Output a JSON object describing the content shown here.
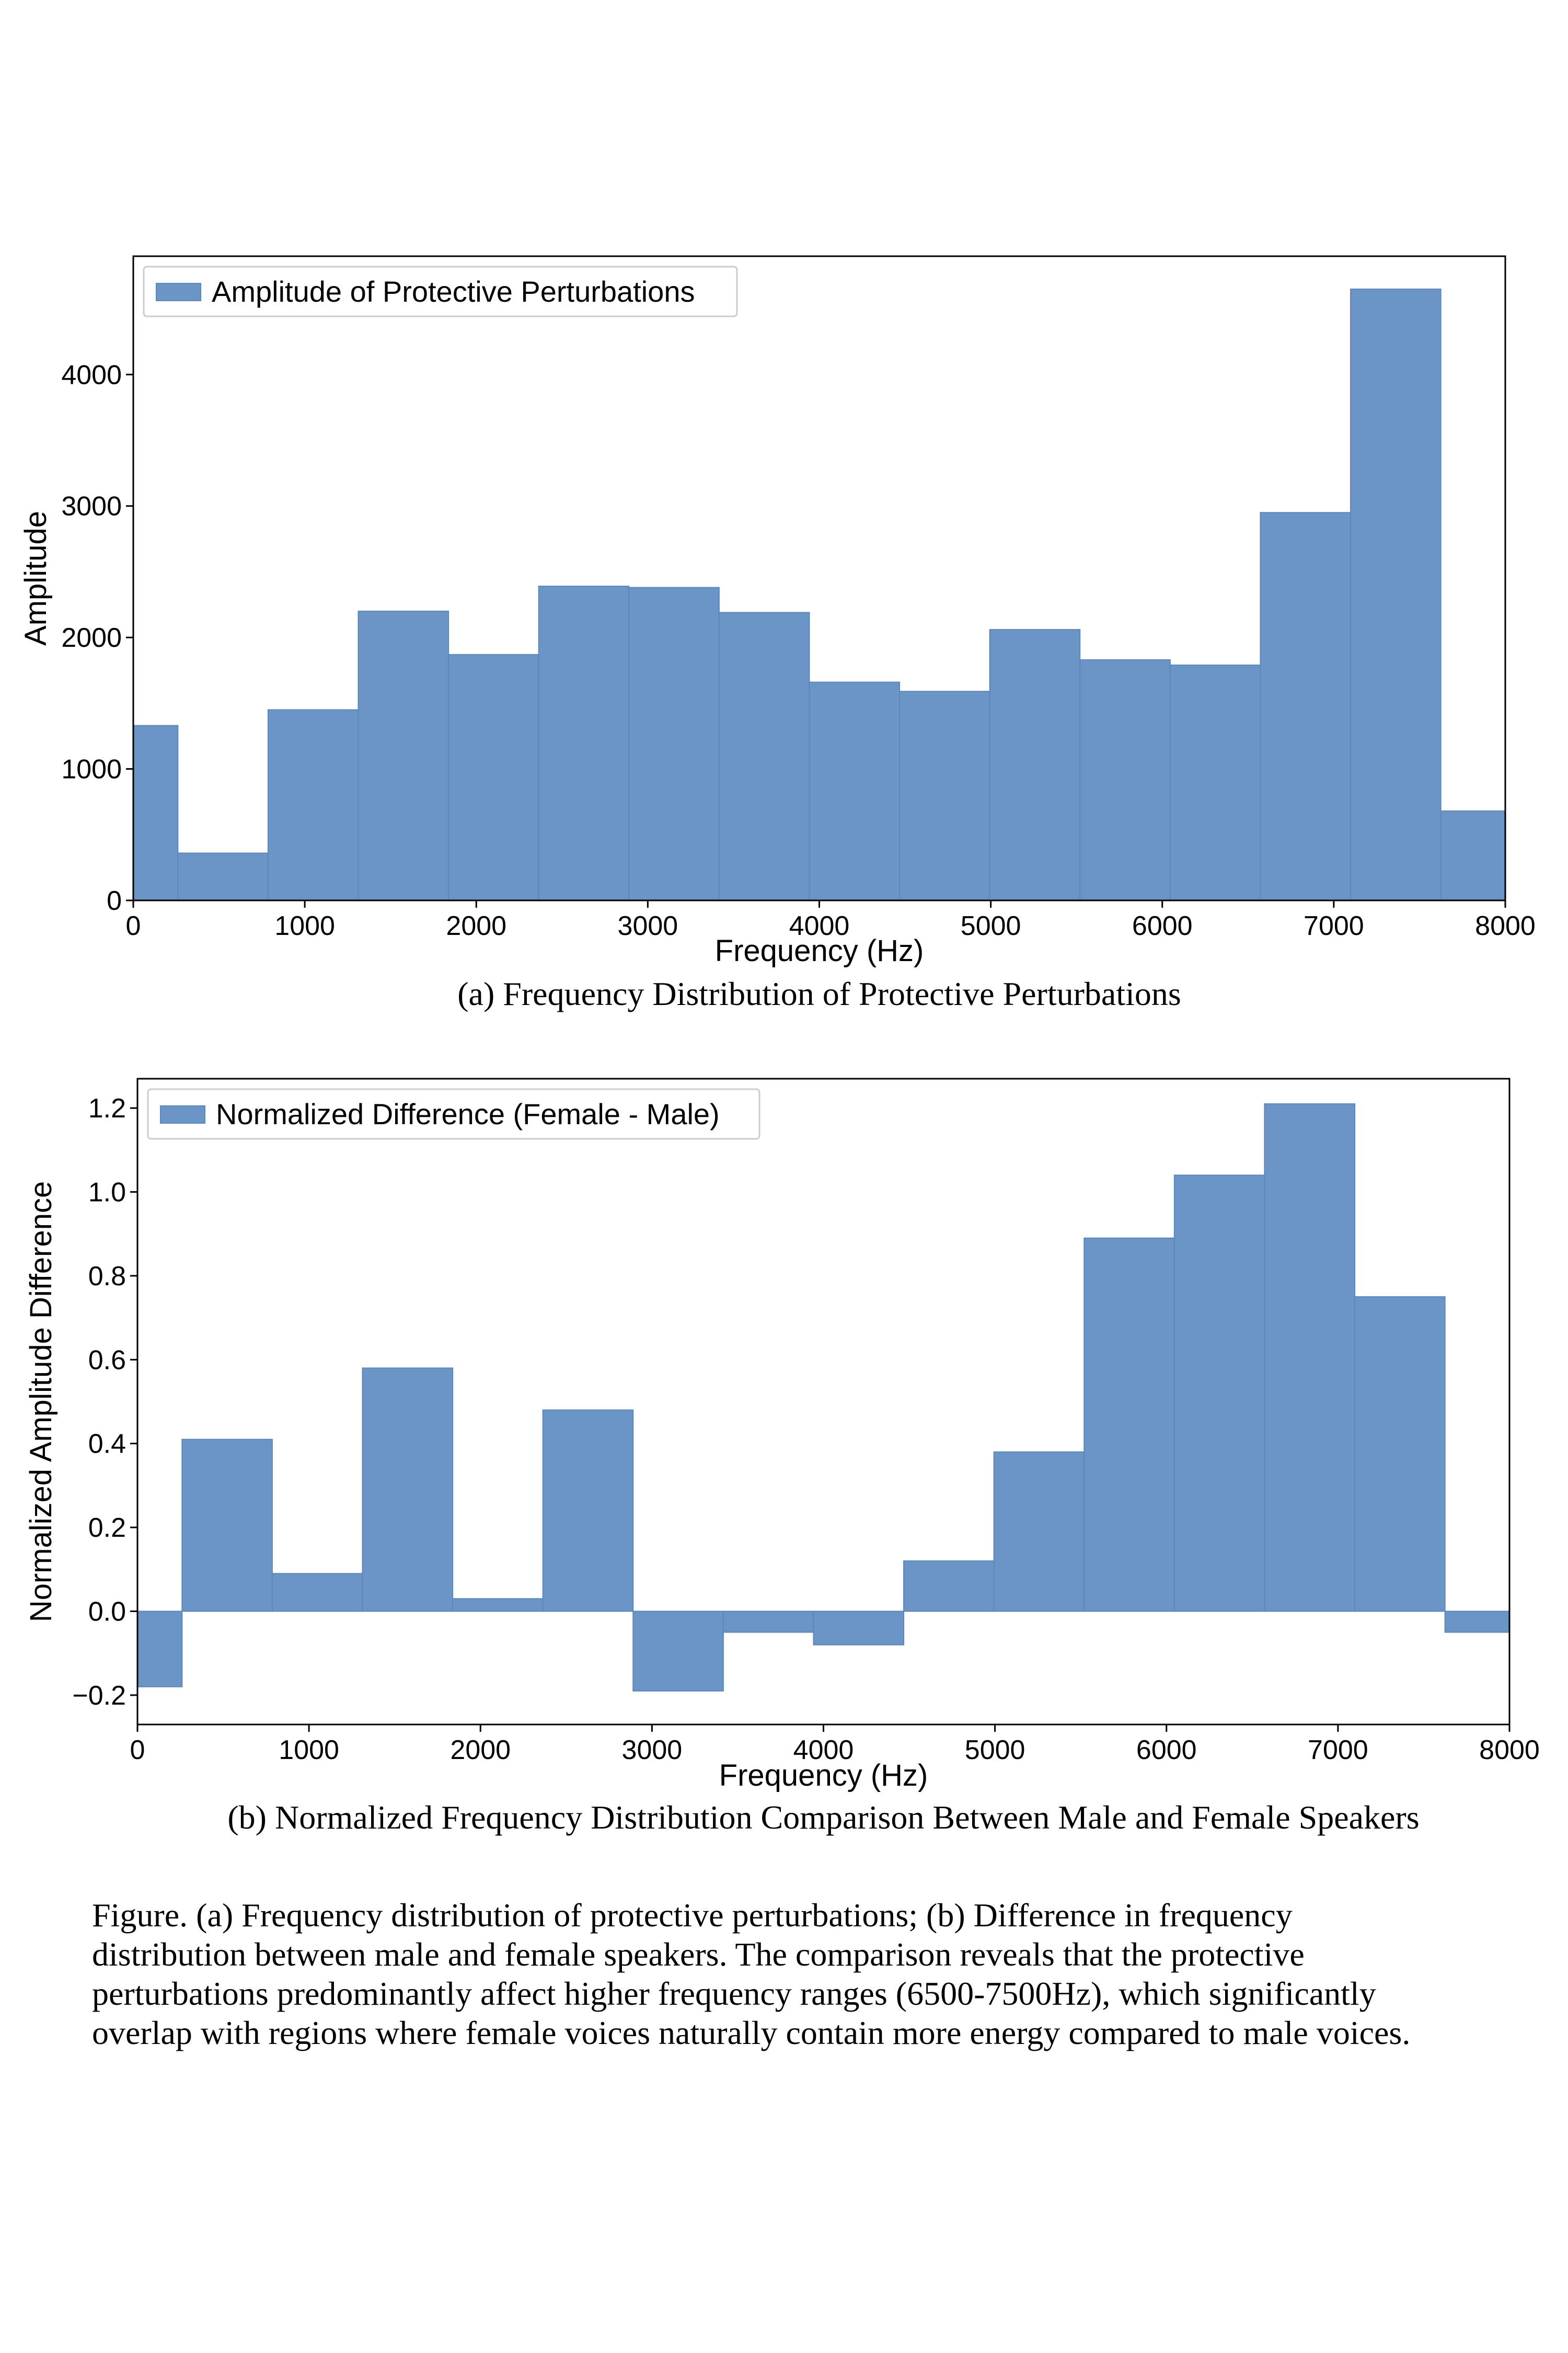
{
  "colors": {
    "bar": "#6b95c7",
    "bar_edge": "#5d87b9",
    "axis": "#000000"
  },
  "figure_caption_lines": [
    "Figure. (a) Frequency distribution of  protective perturbations; (b) Difference in frequency",
    "distribution between male and female speakers. The comparison reveals that the protective",
    "perturbations predominantly affect higher frequency ranges (6500-7500Hz), which significantly",
    "overlap with regions where female voices naturally contain more energy compared to male voices."
  ],
  "chart_data": [
    {
      "type": "bar",
      "caption": "(a) Frequency Distribution of  Protective Perturbations",
      "xlabel": "Frequency (Hz)",
      "ylabel": "Amplitude",
      "xlim": [
        0,
        8000
      ],
      "ylim": [
        0,
        4900
      ],
      "xticks": [
        "0",
        "1000",
        "2000",
        "3000",
        "4000",
        "5000",
        "6000",
        "7000",
        "8000"
      ],
      "xtick_values": [
        0,
        1000,
        2000,
        3000,
        4000,
        5000,
        6000,
        7000,
        8000
      ],
      "yticks": [
        "0",
        "1000",
        "2000",
        "3000",
        "4000"
      ],
      "ytick_values": [
        0,
        1000,
        2000,
        3000,
        4000
      ],
      "grid": false,
      "legend": {
        "position": "top-left",
        "label": "Amplitude of Protective Perturbations"
      },
      "bins": [
        {
          "x0": 0,
          "x1": 260,
          "value": 1330
        },
        {
          "x0": 260,
          "x1": 786,
          "value": 360
        },
        {
          "x0": 786,
          "x1": 1312,
          "value": 1450
        },
        {
          "x0": 1312,
          "x1": 1838,
          "value": 2200
        },
        {
          "x0": 1838,
          "x1": 2364,
          "value": 1870
        },
        {
          "x0": 2364,
          "x1": 2890,
          "value": 2390
        },
        {
          "x0": 2890,
          "x1": 3416,
          "value": 2380
        },
        {
          "x0": 3416,
          "x1": 3942,
          "value": 2190
        },
        {
          "x0": 3942,
          "x1": 4468,
          "value": 1660
        },
        {
          "x0": 4468,
          "x1": 4994,
          "value": 1590
        },
        {
          "x0": 4994,
          "x1": 5520,
          "value": 2060
        },
        {
          "x0": 5520,
          "x1": 6046,
          "value": 1830
        },
        {
          "x0": 6046,
          "x1": 6572,
          "value": 1790
        },
        {
          "x0": 6572,
          "x1": 7098,
          "value": 2950
        },
        {
          "x0": 7098,
          "x1": 7624,
          "value": 4650
        },
        {
          "x0": 7624,
          "x1": 8000,
          "value": 680
        }
      ]
    },
    {
      "type": "bar",
      "caption": "(b) Normalized Frequency Distribution Comparison Between Male and Female Speakers",
      "xlabel": "Frequency (Hz)",
      "ylabel": "Normalized Amplitude Difference",
      "xlim": [
        0,
        8000
      ],
      "ylim": [
        -0.27,
        1.27
      ],
      "xticks": [
        "0",
        "1000",
        "2000",
        "3000",
        "4000",
        "5000",
        "6000",
        "7000",
        "8000"
      ],
      "xtick_values": [
        0,
        1000,
        2000,
        3000,
        4000,
        5000,
        6000,
        7000,
        8000
      ],
      "yticks": [
        "−0.2",
        "0.0",
        "0.2",
        "0.4",
        "0.6",
        "0.8",
        "1.0",
        "1.2"
      ],
      "ytick_values": [
        -0.2,
        0.0,
        0.2,
        0.4,
        0.6,
        0.8,
        1.0,
        1.2
      ],
      "grid": false,
      "legend": {
        "position": "top-left",
        "label": "Normalized Difference (Female - Male)"
      },
      "bins": [
        {
          "x0": 0,
          "x1": 260,
          "value": -0.18
        },
        {
          "x0": 260,
          "x1": 786,
          "value": 0.41
        },
        {
          "x0": 786,
          "x1": 1312,
          "value": 0.09
        },
        {
          "x0": 1312,
          "x1": 1838,
          "value": 0.58
        },
        {
          "x0": 1838,
          "x1": 2364,
          "value": 0.03
        },
        {
          "x0": 2364,
          "x1": 2890,
          "value": 0.48
        },
        {
          "x0": 2890,
          "x1": 3416,
          "value": -0.19
        },
        {
          "x0": 3416,
          "x1": 3942,
          "value": -0.05
        },
        {
          "x0": 3942,
          "x1": 4468,
          "value": -0.08
        },
        {
          "x0": 4468,
          "x1": 4994,
          "value": 0.12
        },
        {
          "x0": 4994,
          "x1": 5520,
          "value": 0.38
        },
        {
          "x0": 5520,
          "x1": 6046,
          "value": 0.89
        },
        {
          "x0": 6046,
          "x1": 6572,
          "value": 1.04
        },
        {
          "x0": 6572,
          "x1": 7098,
          "value": 1.21
        },
        {
          "x0": 7098,
          "x1": 7624,
          "value": 0.75
        },
        {
          "x0": 7624,
          "x1": 8000,
          "value": -0.05
        }
      ]
    }
  ]
}
